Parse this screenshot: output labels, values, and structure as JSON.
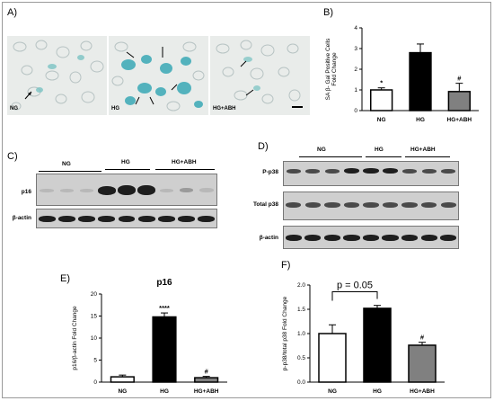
{
  "panels": {
    "A": {
      "label": "A)",
      "images": [
        {
          "label": "NG"
        },
        {
          "label": "HG"
        },
        {
          "label": "HG+ABH"
        }
      ]
    },
    "B": {
      "label": "B)"
    },
    "C": {
      "label": "C)",
      "groups": [
        "NG",
        "HG",
        "HG+ABH"
      ],
      "rows": [
        "p16",
        "β-actin"
      ]
    },
    "D": {
      "label": "D)",
      "groups": [
        "NG",
        "HG",
        "HG+ABH"
      ],
      "rows": [
        "P-p38",
        "Total p38",
        "β-actin"
      ]
    },
    "E": {
      "label": "E)"
    },
    "F": {
      "label": "F)"
    }
  },
  "chart_data": [
    {
      "id": "B",
      "type": "bar",
      "categories": [
        "NG",
        "HG",
        "HG+ABH"
      ],
      "values": [
        1.0,
        2.8,
        0.92
      ],
      "errors": [
        0.1,
        0.42,
        0.4
      ],
      "ylabel": "SA β-Gal Positive Cells Fold Change",
      "ylim": [
        0,
        4
      ],
      "yticks": [
        "0",
        "1",
        "2",
        "3",
        "4"
      ],
      "annotations": [
        "*",
        "",
        "#"
      ],
      "colors": [
        "#ffffff",
        "#000000",
        "#808080"
      ]
    },
    {
      "id": "E",
      "type": "bar",
      "title": "p16",
      "categories": [
        "NG",
        "HG",
        "HG+ABH"
      ],
      "values": [
        1.2,
        14.8,
        1.0
      ],
      "errors": [
        0.4,
        0.9,
        0.3
      ],
      "ylabel": "p16/β-actin Fold Change",
      "ylim": [
        0,
        20
      ],
      "yticks": [
        "0",
        "5",
        "10",
        "15",
        "20"
      ],
      "annotations": [
        "",
        "****",
        "#"
      ],
      "colors": [
        "#ffffff",
        "#000000",
        "#808080"
      ]
    },
    {
      "id": "F",
      "type": "bar",
      "categories": [
        "NG",
        "HG",
        "HG+ABH"
      ],
      "values": [
        1.0,
        1.52,
        0.76
      ],
      "errors": [
        0.18,
        0.06,
        0.06
      ],
      "ylabel": "p-p38/total p38 Fold Change",
      "ylim": [
        0,
        2.0
      ],
      "yticks": [
        "0.0",
        "0.5",
        "1.0",
        "1.5",
        "2.0"
      ],
      "annotations": [
        "",
        "",
        "#"
      ],
      "bracket": {
        "text": "p = 0.05"
      },
      "colors": [
        "#ffffff",
        "#000000",
        "#808080"
      ]
    }
  ]
}
